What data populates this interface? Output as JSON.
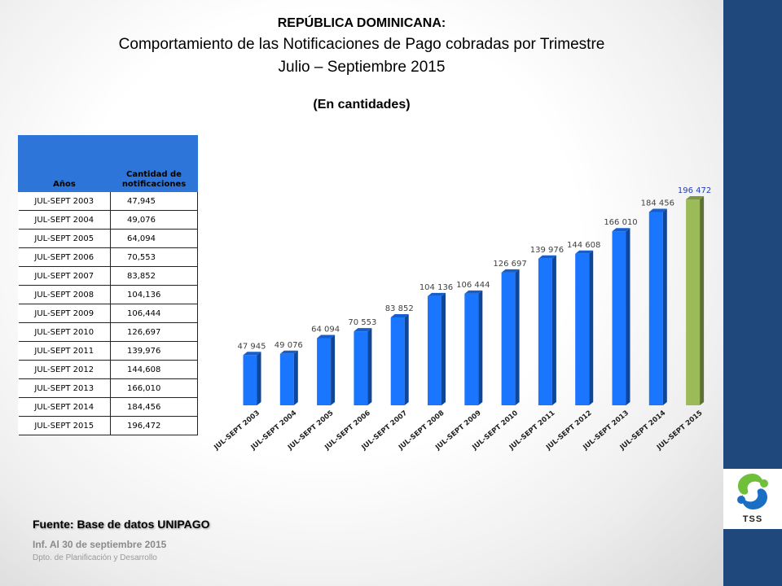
{
  "header": {
    "title": "REPÚBLICA DOMINICANA:",
    "line2": "Comportamiento de las Notificaciones de Pago cobradas por Trimestre",
    "line3": "Julio – Septiembre 2015",
    "subtitle": "(En cantidades)"
  },
  "table": {
    "headers": [
      "Años",
      "Cantidad de notificaciones"
    ],
    "rows": [
      {
        "period": "JUL-SEPT 2003",
        "value": "47,945"
      },
      {
        "period": "JUL-SEPT 2004",
        "value": "49,076"
      },
      {
        "period": "JUL-SEPT 2005",
        "value": "64,094"
      },
      {
        "period": "JUL-SEPT 2006",
        "value": "70,553"
      },
      {
        "period": "JUL-SEPT 2007",
        "value": "83,852"
      },
      {
        "period": "JUL-SEPT 2008",
        "value": "104,136"
      },
      {
        "period": "JUL-SEPT 2009",
        "value": "106,444"
      },
      {
        "period": "JUL-SEPT 2010",
        "value": "126,697"
      },
      {
        "period": "JUL-SEPT 2011",
        "value": "139,976"
      },
      {
        "period": "JUL-SEPT 2012",
        "value": "144,608"
      },
      {
        "period": "JUL-SEPT 2013",
        "value": "166,010"
      },
      {
        "period": "JUL-SEPT 2014",
        "value": "184,456"
      },
      {
        "period": "JUL-SEPT 2015",
        "value": "196,472"
      }
    ]
  },
  "chart_data": {
    "type": "bar",
    "categories": [
      "JUL-SEPT 2003",
      "JUL-SEPT 2004",
      "JUL-SEPT 2005",
      "JUL-SEPT 2006",
      "JUL-SEPT 2007",
      "JUL-SEPT 2008",
      "JUL-SEPT 2009",
      "JUL-SEPT 2010",
      "JUL-SEPT 2011",
      "JUL-SEPT 2012",
      "JUL-SEPT 2013",
      "JUL-SEPT 2014",
      "JUL-SEPT 2015"
    ],
    "values": [
      47945,
      49076,
      64094,
      70553,
      83852,
      104136,
      106444,
      126697,
      139976,
      144608,
      166010,
      184456,
      196472
    ],
    "data_labels": [
      "47 945",
      "49 076",
      "64 094",
      "70 553",
      "83 852",
      "104 136",
      "106 444",
      "126 697",
      "139 976",
      "144 608",
      "166 010",
      "184 456",
      "196 472"
    ],
    "ylim": [
      0,
      196472
    ],
    "grid": false,
    "legend": "none",
    "bar_color": "#1a75ff",
    "highlight_color": "#9bbb59",
    "highlight_label_color": "#1f3fbf"
  },
  "footer": {
    "source": "Fuente: Base de datos UNIPAGO",
    "report_date": "Inf. Al 30 de septiembre 2015",
    "department": "Dpto. de Planificación y Desarrollo"
  },
  "logo": {
    "label": "TSS",
    "icon": "tss-logo-icon",
    "blue": "#1a6fc4",
    "green": "#6fbf3a"
  },
  "colors": {
    "band": "#1f497d",
    "table_header": "#2e75d9"
  }
}
